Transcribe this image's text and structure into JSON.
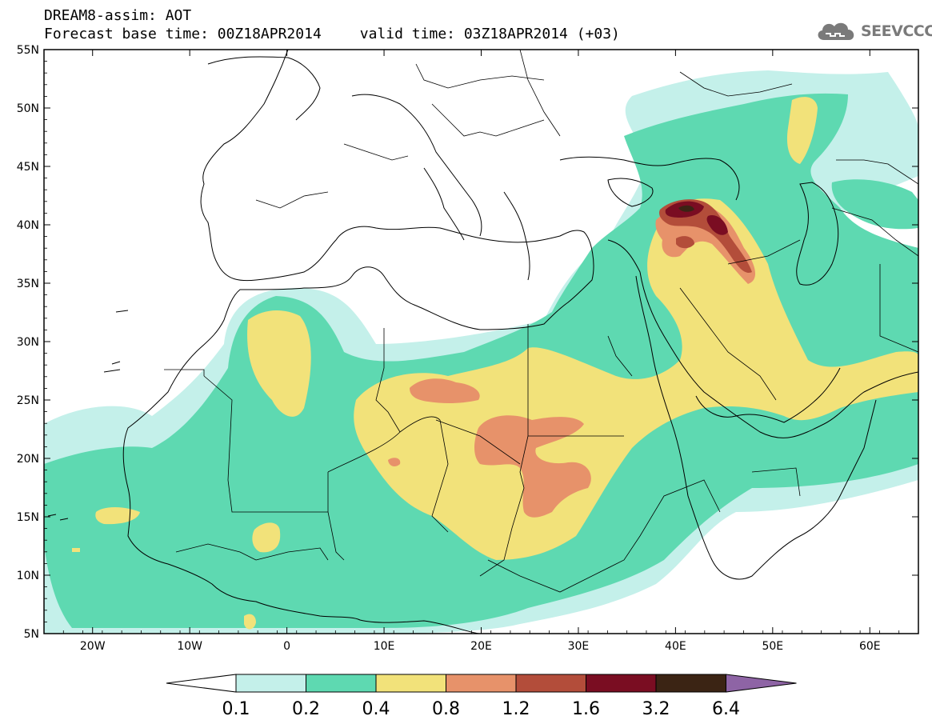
{
  "header": {
    "line1": "DREAM8-assim: AOT",
    "base_time": "Forecast base time: 00Z18APR2014",
    "valid_time": "valid time: 03Z18APR2014 (+03)"
  },
  "logo": {
    "text": "SEEVCCC",
    "icon": "cloud-icon"
  },
  "map": {
    "lon_range": [
      -25,
      65
    ],
    "lat_range": [
      5,
      55
    ],
    "lat_labels": [
      "5N",
      "10N",
      "15N",
      "20N",
      "25N",
      "30N",
      "35N",
      "40N",
      "45N",
      "50N",
      "55N"
    ],
    "lon_labels": [
      "20W",
      "10W",
      "0",
      "10E",
      "20E",
      "30E",
      "40E",
      "50E",
      "60E"
    ]
  },
  "colorbar": {
    "levels": [
      "0.1",
      "0.2",
      "0.4",
      "0.8",
      "1.2",
      "1.6",
      "3.2",
      "6.4"
    ],
    "colors": [
      "#c4f0ea",
      "#5ed9b1",
      "#f2e27a",
      "#e7926a",
      "#b34d3a",
      "#7a0d22",
      "#3b2414",
      "#8e64a5"
    ],
    "under_color": "#ffffff"
  }
}
